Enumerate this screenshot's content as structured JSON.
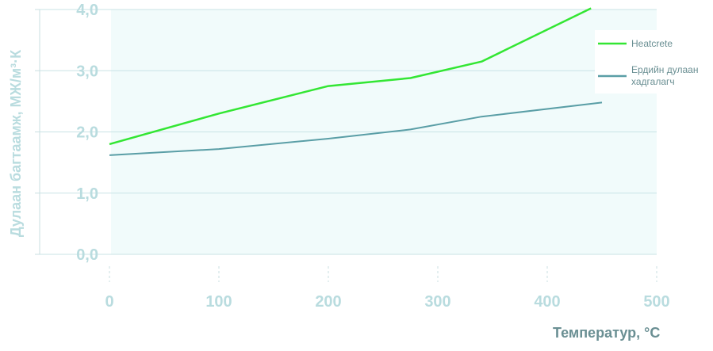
{
  "chart_data": {
    "type": "line",
    "xlabel": "Температур,",
    "xlabel_unit": "°С",
    "ylabel": "Дулаан багтаамж, МЖ/м³·К",
    "x_ticks": [
      "0",
      "100",
      "200",
      "300",
      "400",
      "500"
    ],
    "y_ticks": [
      "0,0",
      "1,0",
      "2,0",
      "3,0",
      "4,0"
    ],
    "xlim": [
      0,
      500
    ],
    "ylim": [
      0,
      4
    ],
    "grid": true,
    "legend_position": "right",
    "series": [
      {
        "name": "Heatcrete",
        "color": "#33e633",
        "points": [
          [
            0,
            1.8
          ],
          [
            100,
            2.3
          ],
          [
            200,
            2.75
          ],
          [
            275,
            2.88
          ],
          [
            340,
            3.15
          ],
          [
            440,
            4.02
          ]
        ]
      },
      {
        "name": "Ердийн дулаан хадгалагч",
        "name_lines": [
          "Ердийн дулаан",
          "хадгалагч"
        ],
        "color": "#5a9ea6",
        "points": [
          [
            0,
            1.62
          ],
          [
            100,
            1.72
          ],
          [
            200,
            1.89
          ],
          [
            275,
            2.04
          ],
          [
            340,
            2.25
          ],
          [
            450,
            2.48
          ]
        ]
      }
    ]
  }
}
